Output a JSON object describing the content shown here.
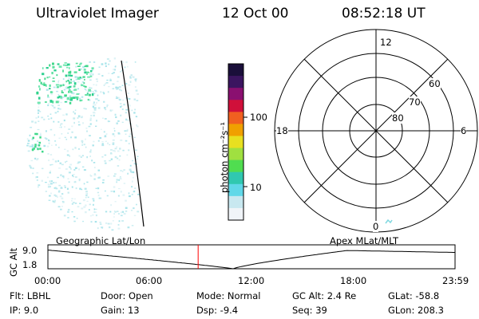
{
  "header": {
    "instrument": "Ultraviolet Imager",
    "date": "12 Oct 00",
    "time": "08:52:18 UT"
  },
  "left_panel": {
    "label": "Geographic Lat/Lon"
  },
  "colorbar": {
    "label": "photon cm⁻²s⁻¹",
    "ticks": [
      "100",
      "10"
    ],
    "scale": "log",
    "colors": [
      "#1a0f3a",
      "#3b1560",
      "#8a1070",
      "#d0103a",
      "#f06020",
      "#f0a000",
      "#e8e020",
      "#a0e040",
      "#50dd50",
      "#30c8b0",
      "#60d8e8",
      "#c8e8f0",
      "#f0f4f8"
    ]
  },
  "polar_panel": {
    "label": "Apex MLat/MLT",
    "mlt_labels": {
      "top": "12",
      "left": "18",
      "right": "6",
      "bottom": "0"
    },
    "lat_labels": [
      "60",
      "70",
      "80"
    ]
  },
  "altitude_strip": {
    "ylabel": "GC Alt",
    "y_ticks": [
      "9.0",
      "1.8"
    ],
    "x_ticks": [
      "00:00",
      "06:00",
      "12:00",
      "18:00",
      "23:59"
    ],
    "curve_color": "#000000",
    "marker_color": "#ff0000",
    "marker_time_fraction": 0.369
  },
  "info": {
    "flt": "Flt: LBHL",
    "ip": "IP:  9.0",
    "door": "Door: Open",
    "gain": "Gain: 13",
    "mode": "Mode: Normal",
    "dsp": "Dsp:    -9.4",
    "gc_alt": "GC Alt: 2.4 Re",
    "seq": "Seq: 39",
    "glat": "GLat: -58.8",
    "glon": "GLon: 208.3"
  }
}
